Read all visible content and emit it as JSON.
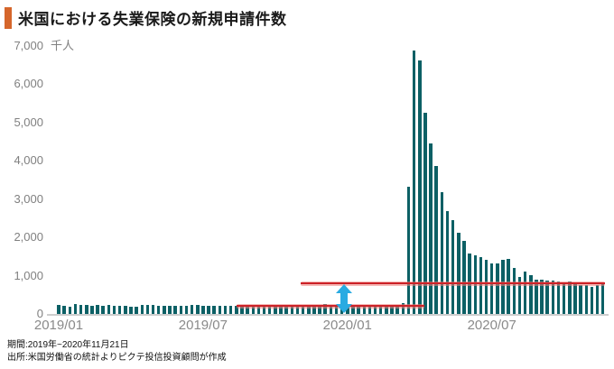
{
  "header": {
    "title": "米国における失業保険の新規申請件数",
    "accent_color": "#d5662b"
  },
  "chart_data": {
    "type": "bar",
    "title": "米国における失業保険の新規申請件数",
    "unit": "千人",
    "frequency": "weekly",
    "x_start": "2019/01",
    "x_end": "2020/11/21",
    "y_max": 7000,
    "y_ticks": [
      "0",
      "1,000",
      "2,000",
      "3,000",
      "4,000",
      "5,000",
      "6,000",
      "7,000"
    ],
    "x_ticks": [
      {
        "label": "2019/01",
        "week_index": 0
      },
      {
        "label": "2019/07",
        "week_index": 26
      },
      {
        "label": "2020/01",
        "week_index": 52
      },
      {
        "label": "2020/07",
        "week_index": 78
      }
    ],
    "values": [
      231,
      212,
      200,
      253,
      234,
      239,
      217,
      226,
      223,
      229,
      216,
      212,
      204,
      197,
      193,
      230,
      230,
      228,
      212,
      212,
      218,
      219,
      222,
      217,
      229,
      224,
      209,
      216,
      211,
      217,
      211,
      217,
      211,
      216,
      219,
      206,
      210,
      215,
      220,
      212,
      218,
      213,
      218,
      211,
      227,
      228,
      214,
      203,
      252,
      235,
      224,
      223,
      214,
      207,
      223,
      212,
      201,
      204,
      215,
      220,
      217,
      211,
      282,
      3307,
      6867,
      6615,
      5237,
      4442,
      3867,
      3176,
      2687,
      2446,
      2123,
      1897,
      1566,
      1540,
      1482,
      1413,
      1310,
      1308,
      1422,
      1435,
      1191,
      971,
      1104,
      1011,
      884,
      893,
      866,
      873,
      849,
      767,
      842,
      791,
      758,
      757,
      711,
      742,
      778
    ],
    "peak_value": 6867,
    "bar_color": "#0c6065",
    "grid": false,
    "legend": "none",
    "annotations": {
      "pre_corona_level_line": {
        "value": 220,
        "from_week": 32,
        "to_week": 65.9,
        "color": "#cc2228"
      },
      "current_level_line": {
        "value": 800,
        "from_week": 43.6,
        "to_week": 98.3,
        "color": "#cc2228"
      },
      "gap_arrow": {
        "week": 51.4,
        "from_value": 780,
        "to_value": 30,
        "color": "#29abe2"
      }
    }
  },
  "footer": {
    "line1": "期間:2019年~2020年11月21日",
    "line2": "出所:米国労働省の統計よりピクテ投信投資顧問が作成"
  }
}
